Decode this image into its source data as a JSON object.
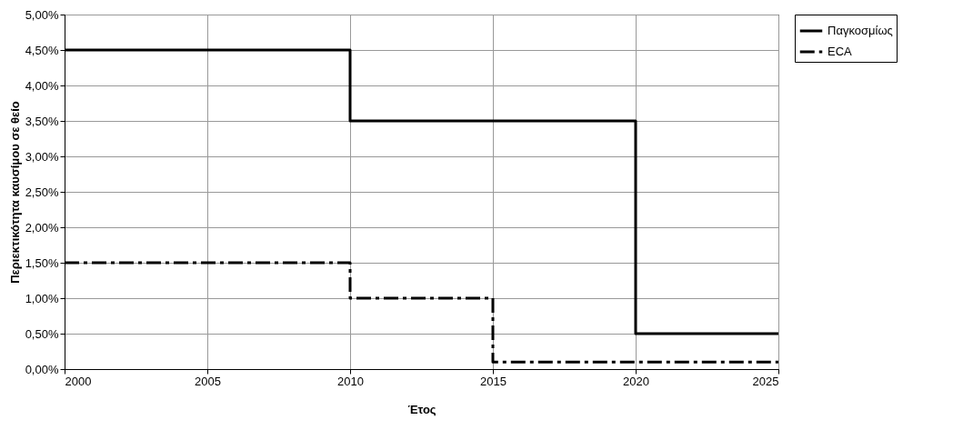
{
  "chart_data": {
    "type": "step",
    "xlabel": "Έτος",
    "ylabel": "Περιεκτικότητα καυσίμου σε θείο",
    "xlim": [
      2000,
      2025
    ],
    "xticks": [
      2000,
      2005,
      2010,
      2015,
      2020,
      2025
    ],
    "ylim": [
      0,
      5
    ],
    "yticks": [
      {
        "value": 0,
        "label": "0,00%"
      },
      {
        "value": 0.5,
        "label": "0,50%"
      },
      {
        "value": 1,
        "label": "1,00%"
      },
      {
        "value": 1.5,
        "label": "1,50%"
      },
      {
        "value": 2,
        "label": "2,00%"
      },
      {
        "value": 2.5,
        "label": "2,50%"
      },
      {
        "value": 3,
        "label": "3,00%"
      },
      {
        "value": 3.5,
        "label": "3,50%"
      },
      {
        "value": 4,
        "label": "4,00%"
      },
      {
        "value": 4.5,
        "label": "4,50%"
      },
      {
        "value": 5,
        "label": "5,00%"
      }
    ],
    "grid": true,
    "legend": "right",
    "series": [
      {
        "name": "Παγκοσμίως",
        "color": "#000000",
        "line_style": "solid",
        "x": [
          2000,
          2010,
          2020,
          2025
        ],
        "values": [
          4.5,
          3.5,
          0.5,
          0.5
        ]
      },
      {
        "name": "ECA",
        "color": "#000000",
        "line_style": "dashed",
        "x": [
          2000,
          2010,
          2015,
          2025
        ],
        "values": [
          1.5,
          1.0,
          0.1,
          0.1
        ]
      }
    ]
  }
}
